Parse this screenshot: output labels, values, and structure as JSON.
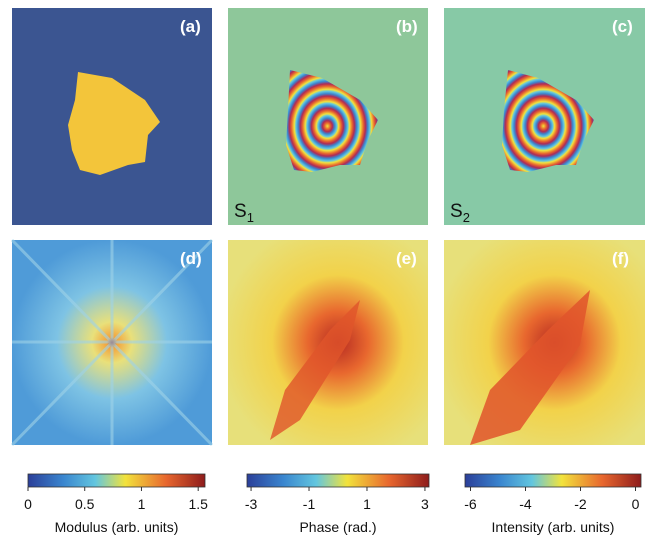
{
  "panels": [
    {
      "label": "(a)"
    },
    {
      "label": "(b)",
      "sublabel": {
        "main": "S",
        "sub": "1"
      }
    },
    {
      "label": "(c)",
      "sublabel": {
        "main": "S",
        "sub": "2"
      }
    },
    {
      "label": "(d)"
    },
    {
      "label": "(e)"
    },
    {
      "label": "(f)"
    }
  ],
  "colorbars": [
    {
      "label": "Modulus (arb. units)",
      "lim": [
        0,
        1.56
      ],
      "ticks": [
        0,
        0.5,
        1,
        1.5
      ]
    },
    {
      "label": "Phase (rad.)",
      "lim": [
        -3.14,
        3.14
      ],
      "ticks": [
        -3,
        -1,
        1,
        3
      ]
    },
    {
      "label": "Intensity (arb. units)",
      "lim": [
        -6.2,
        0.2
      ],
      "ticks": [
        -6,
        -4,
        -2,
        0
      ]
    }
  ]
}
